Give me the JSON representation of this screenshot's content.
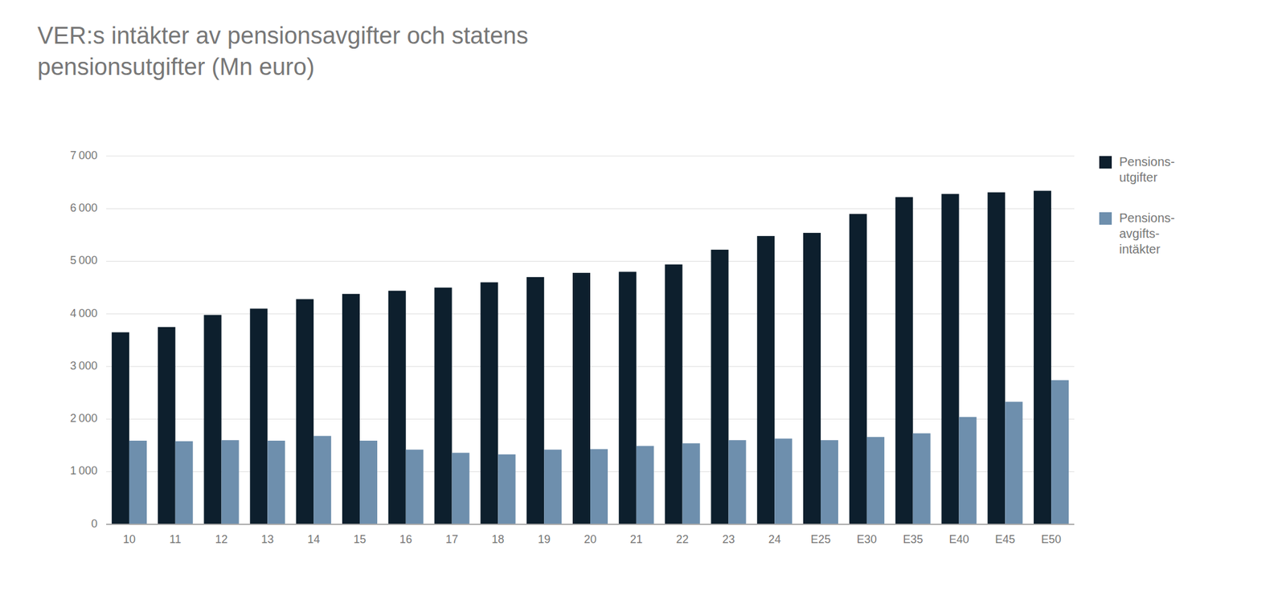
{
  "chart_data": {
    "type": "bar",
    "title": "VER:s intäkter av pensionsavgifter och statens\npensionsutgifter (Mn euro)",
    "categories": [
      "10",
      "11",
      "12",
      "13",
      "14",
      "15",
      "16",
      "17",
      "18",
      "19",
      "20",
      "21",
      "22",
      "23",
      "24",
      "E25",
      "E30",
      "E35",
      "E40",
      "E45",
      "E50"
    ],
    "series": [
      {
        "name": "Pensions-\nutgifter",
        "color": "#0d1f2d",
        "values": [
          3650,
          3750,
          3980,
          4100,
          4280,
          4380,
          4440,
          4500,
          4600,
          4700,
          4780,
          4800,
          4940,
          5220,
          5480,
          5540,
          5900,
          6220,
          6280,
          6310,
          6340
        ]
      },
      {
        "name": "Pensions-\navgifts-\nintäkter",
        "color": "#6e8fad",
        "values": [
          1590,
          1580,
          1600,
          1590,
          1680,
          1590,
          1420,
          1360,
          1330,
          1420,
          1430,
          1490,
          1540,
          1600,
          1630,
          1600,
          1660,
          1730,
          2040,
          2330,
          2740
        ]
      }
    ],
    "ylim": [
      0,
      7000
    ],
    "yticks": [
      0,
      {
        "value": 1000,
        "label": "1 000"
      },
      {
        "value": 2000,
        "label": "2 000"
      },
      {
        "value": 3000,
        "label": "3 000"
      },
      {
        "value": 4000,
        "label": "4 000"
      },
      {
        "value": 5000,
        "label": "5 000"
      },
      {
        "value": 6000,
        "label": "6 000"
      },
      {
        "value": 7000,
        "label": "7 000"
      }
    ],
    "grid": true,
    "legend": "right"
  }
}
